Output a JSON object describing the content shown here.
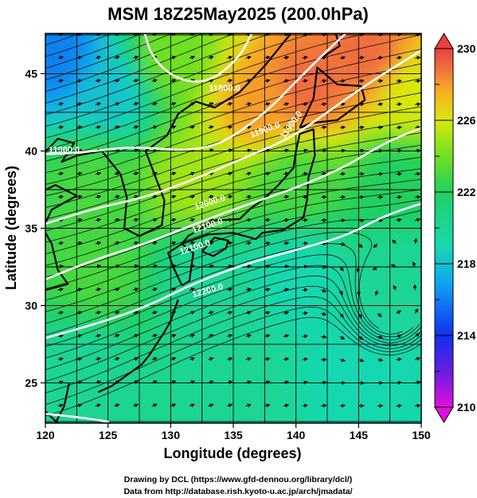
{
  "title": "MSM 18Z25May2025 (200.0hPa)",
  "x_axis": {
    "label": "Longitude (degrees)",
    "ticks": [
      "120",
      "125",
      "130",
      "135",
      "140",
      "145",
      "150"
    ],
    "range": [
      120,
      150
    ]
  },
  "y_axis": {
    "label": "Latitude  (degrees)",
    "ticks": [
      "25",
      "30",
      "35",
      "40",
      "45"
    ],
    "range": [
      22.4,
      47.6
    ]
  },
  "colorbar": {
    "ticks": [
      "230",
      "226",
      "222",
      "218",
      "214",
      "210"
    ],
    "range": [
      210,
      230
    ],
    "colors": [
      "#e010e0",
      "#6a1ee0",
      "#1030f0",
      "#10a8f0",
      "#18d8b0",
      "#20d060",
      "#70e020",
      "#d8e810",
      "#f8b020",
      "#f06a40",
      "#e84040"
    ]
  },
  "contour_labels": [
    "11800.0",
    "11900.0",
    "11900.0",
    "11900.0",
    "12000.0",
    "12100.0",
    "12100.0",
    "12200.0"
  ],
  "credits": {
    "line1": "Drawing by DCL (https://www.gfd-dennou.org/library/dcl/)",
    "line2": "Data from http://database.rish.kyoto-u.ac.jp/arch/jmadata/"
  },
  "chart_data": {
    "type": "heatmap",
    "title": "MSM 18Z25May2025 (200.0hPa)",
    "xlabel": "Longitude (degrees)",
    "ylabel": "Latitude  (degrees)",
    "xlim": [
      120,
      150
    ],
    "ylim": [
      22.4,
      47.6
    ],
    "colorbar_range": [
      210,
      230
    ],
    "color_field_samples": [
      {
        "lon": 121,
        "lat": 46,
        "value": 216
      },
      {
        "lon": 125,
        "lat": 44,
        "value": 218
      },
      {
        "lon": 130,
        "lat": 46,
        "value": 224
      },
      {
        "lon": 137,
        "lat": 43,
        "value": 228
      },
      {
        "lon": 141,
        "lat": 44,
        "value": 229
      },
      {
        "lon": 146,
        "lat": 46,
        "value": 229
      },
      {
        "lon": 149,
        "lat": 44,
        "value": 226
      },
      {
        "lon": 124,
        "lat": 38,
        "value": 223
      },
      {
        "lon": 132,
        "lat": 38,
        "value": 225
      },
      {
        "lon": 140,
        "lat": 38,
        "value": 223
      },
      {
        "lon": 148,
        "lat": 38,
        "value": 222
      },
      {
        "lon": 124,
        "lat": 32,
        "value": 223
      },
      {
        "lon": 133,
        "lat": 32,
        "value": 220
      },
      {
        "lon": 140,
        "lat": 32,
        "value": 219
      },
      {
        "lon": 148,
        "lat": 32,
        "value": 220
      },
      {
        "lon": 123,
        "lat": 26,
        "value": 220
      },
      {
        "lon": 135,
        "lat": 26,
        "value": 220
      },
      {
        "lon": 145,
        "lat": 26,
        "value": 219
      }
    ],
    "height_contours": [
      {
        "label": "11800.0",
        "points": [
          [
            127.8,
            48.0
          ],
          [
            128.5,
            46.0
          ],
          [
            130.5,
            44.6
          ],
          [
            133.0,
            44.4
          ],
          [
            135.5,
            46.0
          ],
          [
            136.7,
            48.0
          ]
        ]
      },
      {
        "label": "11900.0",
        "points": [
          [
            120.0,
            39.8
          ],
          [
            123.0,
            39.9
          ],
          [
            127.0,
            40.3
          ],
          [
            131.0,
            40.0
          ],
          [
            134.0,
            40.4
          ],
          [
            137.5,
            42.4
          ],
          [
            140.0,
            44.5
          ],
          [
            142.5,
            46.5
          ],
          [
            144.5,
            48.0
          ]
        ]
      },
      {
        "label": "12000.0",
        "points": [
          [
            120.0,
            35.3
          ],
          [
            124.0,
            36.3
          ],
          [
            128.0,
            37.0
          ],
          [
            132.0,
            38.2
          ],
          [
            136.0,
            39.6
          ],
          [
            139.5,
            40.8
          ],
          [
            142.5,
            42.5
          ],
          [
            146.0,
            44.5
          ],
          [
            150.0,
            46.5
          ]
        ]
      },
      {
        "label": "12100.0",
        "points": [
          [
            120.0,
            31.7
          ],
          [
            124.0,
            33.0
          ],
          [
            128.0,
            34.0
          ],
          [
            132.0,
            35.3
          ],
          [
            136.0,
            36.5
          ],
          [
            140.0,
            37.6
          ],
          [
            144.0,
            39.0
          ],
          [
            147.0,
            40.5
          ],
          [
            150.0,
            41.5
          ]
        ]
      },
      {
        "label": "12200.0",
        "points": [
          [
            120.0,
            27.9
          ],
          [
            124.0,
            28.8
          ],
          [
            128.0,
            29.9
          ],
          [
            132.0,
            31.5
          ],
          [
            136.0,
            32.7
          ],
          [
            140.0,
            33.6
          ],
          [
            144.0,
            34.5
          ],
          [
            147.0,
            35.8
          ],
          [
            150.0,
            36.6
          ]
        ]
      },
      {
        "label": "",
        "points": [
          [
            120.0,
            23.0
          ],
          [
            122.5,
            22.8
          ],
          [
            125.0,
            22.5
          ]
        ]
      }
    ]
  }
}
